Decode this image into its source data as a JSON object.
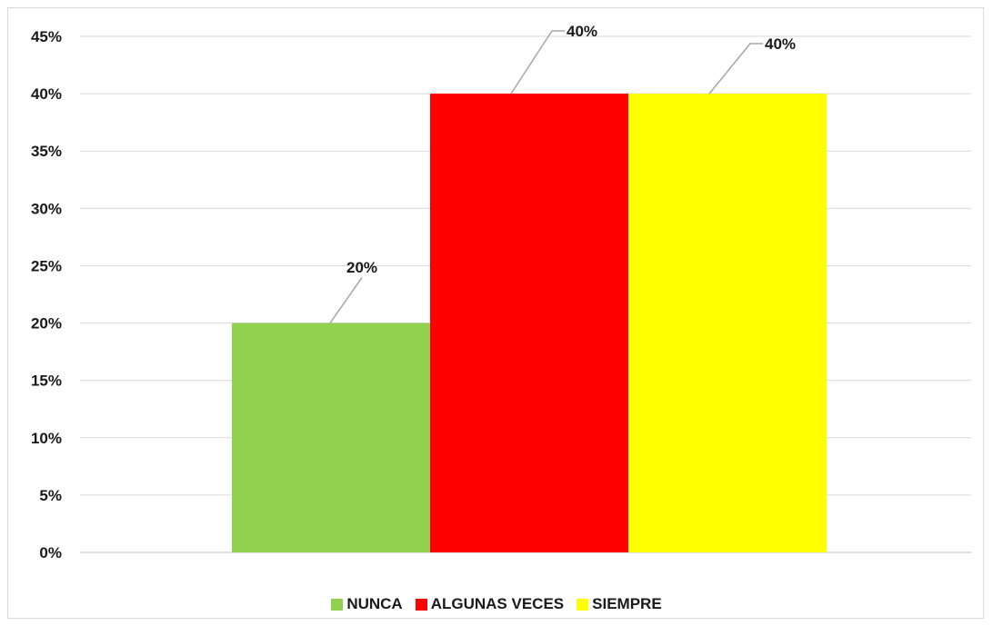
{
  "chart_data": {
    "type": "bar",
    "categories": [
      ""
    ],
    "series": [
      {
        "name": "NUNCA",
        "values": [
          20
        ],
        "color": "#92d050"
      },
      {
        "name": "ALGUNAS VECES",
        "values": [
          40
        ],
        "color": "#ff0000"
      },
      {
        "name": "SIEMPRE",
        "values": [
          40
        ],
        "color": "#ffff00"
      }
    ],
    "data_labels": [
      "20%",
      "40%",
      "40%"
    ],
    "y_ticks": [
      "0%",
      "5%",
      "10%",
      "15%",
      "20%",
      "25%",
      "30%",
      "35%",
      "40%",
      "45%"
    ],
    "ylim": [
      0,
      45
    ],
    "y_unit": "%",
    "grid": true,
    "legend_position": "bottom",
    "title": "",
    "xlabel": "",
    "ylabel": ""
  }
}
